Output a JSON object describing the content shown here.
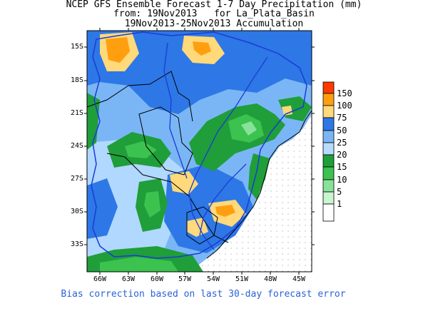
{
  "title_lines": [
    "NCEP GFS Ensemble Forecast 1-7 Day Precipitation (mm)",
    "from: 19Nov2013   for La_Plata_Basin",
    "19Nov2013-25Nov2013 Accumulation"
  ],
  "footer": "Bias correction based on last 30-day forecast error",
  "lat_labels": [
    "15S",
    "18S",
    "21S",
    "24S",
    "27S",
    "30S",
    "33S"
  ],
  "lon_labels": [
    "66W",
    "63W",
    "60W",
    "57W",
    "54W",
    "51W",
    "48W",
    "45W"
  ],
  "legend": {
    "levels": [
      "150",
      "100",
      "75",
      "50",
      "25",
      "20",
      "15",
      "10",
      "5",
      "1"
    ],
    "colors": [
      "#ff3a00",
      "#ff9f10",
      "#ffd97a",
      "#2e77e6",
      "#7ab6f5",
      "#b7dbff",
      "#1f9e3a",
      "#3cc24e",
      "#88e39a",
      "#c9f5cf",
      "#ffffff"
    ]
  },
  "colors": {
    "coast": "#000000",
    "river": "#1a3cd6",
    "footer": "#2a62d9"
  }
}
